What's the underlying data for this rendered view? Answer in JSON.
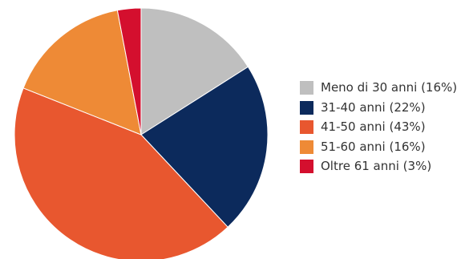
{
  "chart_data": {
    "type": "pie",
    "title": "",
    "legend_position": "right",
    "start_angle_deg": 0,
    "direction": "clockwise",
    "slices": [
      {
        "label": "Meno di 30 anni (16%)",
        "value": 16,
        "color": "#bfbfbf"
      },
      {
        "label": "31-40 anni (22%)",
        "value": 22,
        "color": "#0c2a5c"
      },
      {
        "label": "41-50 anni (43%)",
        "value": 43,
        "color": "#e8572f"
      },
      {
        "label": "51-60 anni (16%)",
        "value": 16,
        "color": "#ee8a36"
      },
      {
        "label": "Oltre 61 anni (3%)",
        "value": 3,
        "color": "#d40f2e"
      }
    ]
  }
}
